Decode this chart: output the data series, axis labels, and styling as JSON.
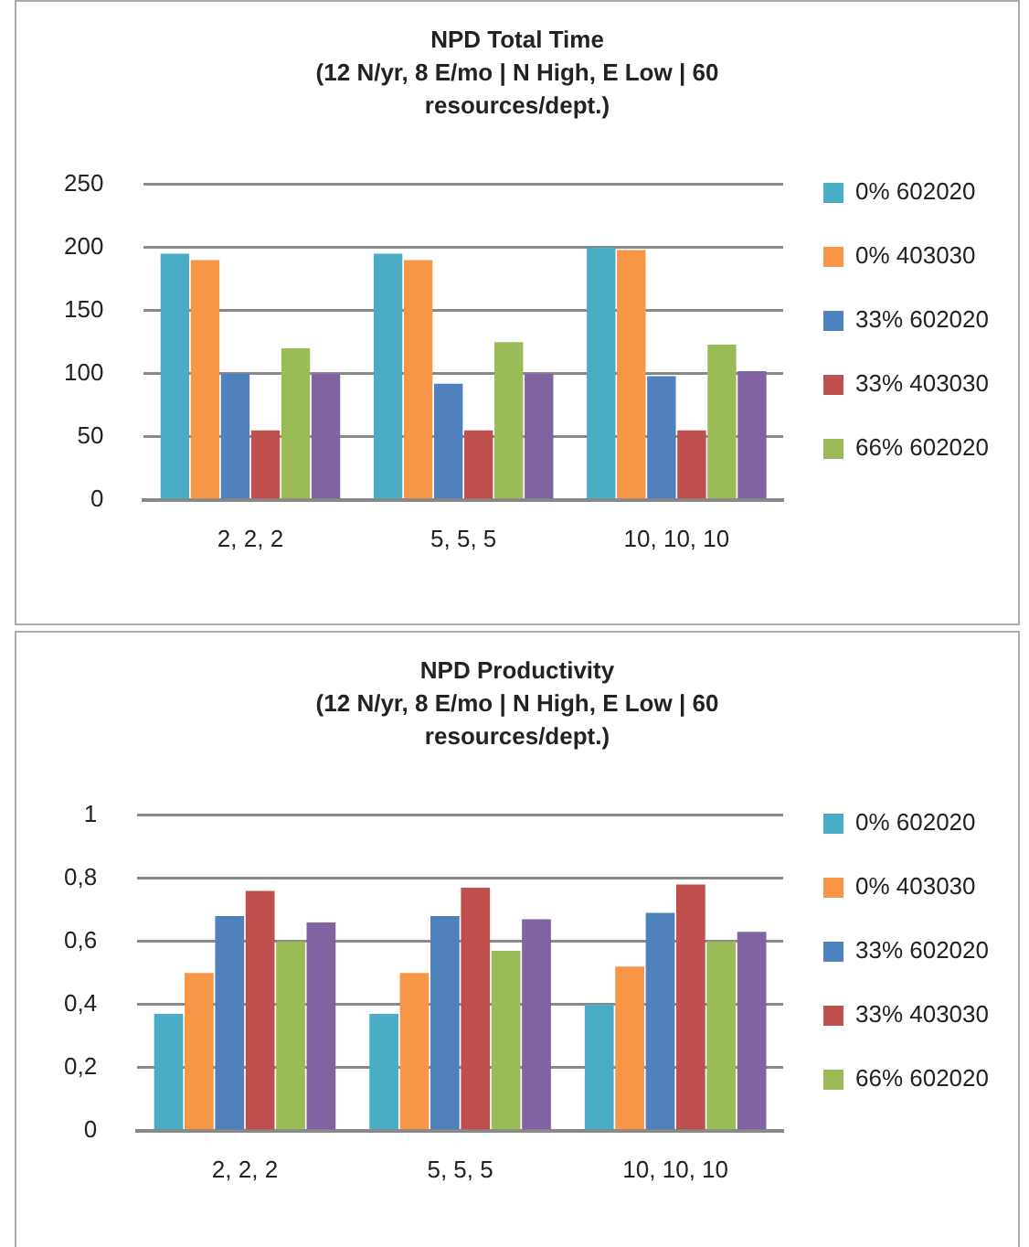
{
  "chart_data": [
    {
      "type": "bar",
      "title": "NPD Total Time",
      "subtitle": "(12 N/yr, 8 E/mo | N High, E Low | 60 resources/dept.)",
      "categories": [
        "2, 2, 2",
        "5, 5, 5",
        "10, 10, 10"
      ],
      "series": [
        {
          "name": "0% 602020",
          "color": "#4bacc6",
          "values": [
            195,
            195,
            200
          ]
        },
        {
          "name": "0% 403030",
          "color": "#f79646",
          "values": [
            190,
            190,
            198
          ]
        },
        {
          "name": "33% 602020",
          "color": "#4f81bd",
          "values": [
            100,
            92,
            98
          ]
        },
        {
          "name": "33% 403030",
          "color": "#c0504d",
          "values": [
            55,
            55,
            55
          ]
        },
        {
          "name": "66% 602020",
          "color": "#9bbb59",
          "values": [
            120,
            125,
            123
          ]
        },
        {
          "color": "#8064a2",
          "values": [
            100,
            100,
            102
          ]
        }
      ],
      "ylim": [
        0,
        250
      ],
      "yticks": [
        0,
        50,
        100,
        150,
        200,
        250
      ],
      "grid": "y",
      "legend": "right"
    },
    {
      "type": "bar",
      "title": "NPD Productivity",
      "subtitle": "(12 N/yr, 8 E/mo | N High, E Low | 60 resources/dept.)",
      "categories": [
        "2, 2, 2",
        "5, 5, 5",
        "10, 10, 10"
      ],
      "series": [
        {
          "name": "0% 602020",
          "color": "#4bacc6",
          "values": [
            0.37,
            0.37,
            0.4
          ]
        },
        {
          "name": "0% 403030",
          "color": "#f79646",
          "values": [
            0.5,
            0.5,
            0.52
          ]
        },
        {
          "name": "33% 602020",
          "color": "#4f81bd",
          "values": [
            0.68,
            0.68,
            0.69
          ]
        },
        {
          "name": "33% 403030",
          "color": "#c0504d",
          "values": [
            0.76,
            0.77,
            0.78
          ]
        },
        {
          "name": "66% 602020",
          "color": "#9bbb59",
          "values": [
            0.6,
            0.57,
            0.6
          ]
        },
        {
          "color": "#8064a2",
          "values": [
            0.66,
            0.67,
            0.63
          ]
        }
      ],
      "ylim": [
        0,
        1
      ],
      "yticks": [
        0,
        {
          "value": 0.2,
          "label": "0,2"
        },
        {
          "value": 0.4,
          "label": "0,4"
        },
        {
          "value": 0.6,
          "label": "0,6"
        },
        {
          "value": 0.8,
          "label": "0,8"
        },
        1
      ],
      "grid": "y",
      "legend": "right"
    }
  ]
}
